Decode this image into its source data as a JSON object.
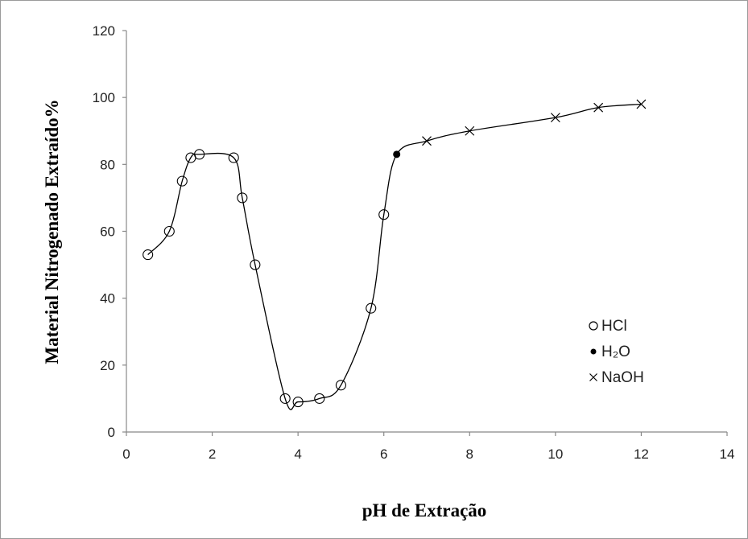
{
  "chart_data": {
    "type": "scatter",
    "title": "",
    "xlabel": "pH de Extração",
    "ylabel": "Material Nitrogenado Extraído%",
    "xlim": [
      0,
      14
    ],
    "ylim": [
      0,
      120
    ],
    "x_ticks": [
      "0",
      "2",
      "4",
      "6",
      "8",
      "10",
      "12",
      "14"
    ],
    "y_ticks": [
      "0",
      "20",
      "40",
      "60",
      "80",
      "100",
      "120"
    ],
    "grid": false,
    "legend_position": "right",
    "curve": [
      {
        "x": 0.5,
        "y": 53
      },
      {
        "x": 1.0,
        "y": 60
      },
      {
        "x": 1.3,
        "y": 75
      },
      {
        "x": 1.5,
        "y": 82
      },
      {
        "x": 1.7,
        "y": 83
      },
      {
        "x": 2.5,
        "y": 82
      },
      {
        "x": 2.7,
        "y": 70
      },
      {
        "x": 3.0,
        "y": 50
      },
      {
        "x": 3.7,
        "y": 10
      },
      {
        "x": 4.0,
        "y": 9
      },
      {
        "x": 4.5,
        "y": 10
      },
      {
        "x": 5.0,
        "y": 14
      },
      {
        "x": 5.7,
        "y": 37
      },
      {
        "x": 6.0,
        "y": 65
      },
      {
        "x": 6.3,
        "y": 83
      },
      {
        "x": 7.0,
        "y": 87
      },
      {
        "x": 8.0,
        "y": 90
      },
      {
        "x": 10.0,
        "y": 94
      },
      {
        "x": 11.0,
        "y": 97
      },
      {
        "x": 12.0,
        "y": 98
      }
    ],
    "series": [
      {
        "name": "HCl",
        "marker": "open-circle",
        "points": [
          {
            "x": 0.5,
            "y": 53
          },
          {
            "x": 1.0,
            "y": 60
          },
          {
            "x": 1.3,
            "y": 75
          },
          {
            "x": 1.5,
            "y": 82
          },
          {
            "x": 1.7,
            "y": 83
          },
          {
            "x": 2.5,
            "y": 82
          },
          {
            "x": 2.7,
            "y": 70
          },
          {
            "x": 3.0,
            "y": 50
          },
          {
            "x": 3.7,
            "y": 10
          },
          {
            "x": 4.0,
            "y": 9
          },
          {
            "x": 4.5,
            "y": 10
          },
          {
            "x": 5.0,
            "y": 14
          },
          {
            "x": 5.7,
            "y": 37
          },
          {
            "x": 6.0,
            "y": 65
          }
        ]
      },
      {
        "name": "H₂O",
        "marker": "filled-circle",
        "points": [
          {
            "x": 6.3,
            "y": 83
          }
        ]
      },
      {
        "name": "NaOH",
        "marker": "x",
        "points": [
          {
            "x": 7.0,
            "y": 87
          },
          {
            "x": 8.0,
            "y": 90
          },
          {
            "x": 10.0,
            "y": 94
          },
          {
            "x": 11.0,
            "y": 97
          },
          {
            "x": 12.0,
            "y": 98
          }
        ]
      }
    ],
    "legend": [
      {
        "symbol": "o",
        "label": "HCl"
      },
      {
        "symbol": "•",
        "label": "H₂O"
      },
      {
        "symbol": "x",
        "label": "NaOH"
      }
    ],
    "colors": {
      "line": "#000000",
      "marker": "#000000",
      "axis": "#888888"
    }
  }
}
